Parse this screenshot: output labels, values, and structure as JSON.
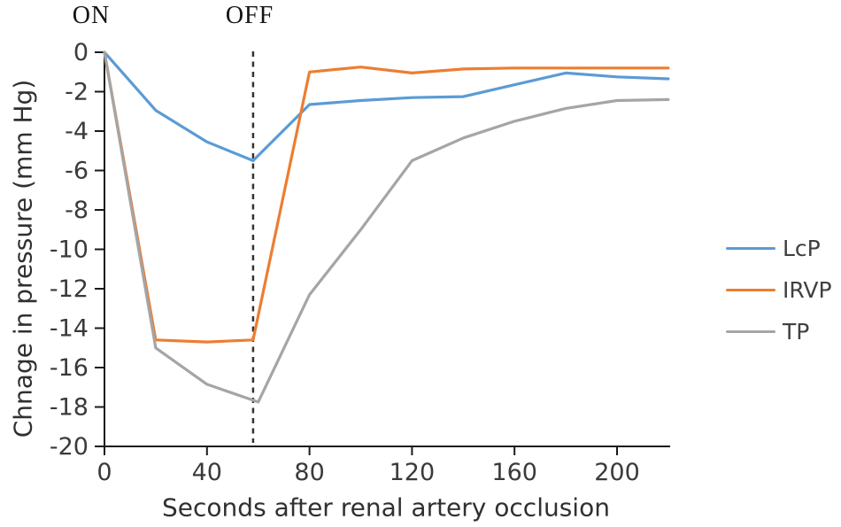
{
  "chart_data": {
    "type": "line",
    "title": "",
    "xlabel": "Seconds after renal artery occlusion",
    "ylabel": "Chnage in pressure (mm Hg)",
    "xlim": [
      0,
      220
    ],
    "ylim": [
      -20,
      0
    ],
    "x_ticks": [
      0,
      40,
      80,
      120,
      160,
      200
    ],
    "y_ticks": [
      0,
      -2,
      -4,
      -6,
      -8,
      -10,
      -12,
      -14,
      -16,
      -18,
      -20
    ],
    "grid": false,
    "legend_position": "outside-right",
    "annotations": {
      "on_text": "ON",
      "on_x": 0,
      "off_text": "OFF",
      "off_x": 58,
      "dashed_vline_x": 58,
      "dashed_vline_style": "dashed"
    },
    "series": [
      {
        "name": "LcP",
        "color": "#5B9BD5",
        "points": [
          [
            0,
            0
          ],
          [
            20,
            -2.95
          ],
          [
            40,
            -4.55
          ],
          [
            58,
            -5.5
          ],
          [
            80,
            -2.65
          ],
          [
            100,
            -2.45
          ],
          [
            120,
            -2.3
          ],
          [
            140,
            -2.25
          ],
          [
            160,
            -1.65
          ],
          [
            180,
            -1.05
          ],
          [
            200,
            -1.25
          ],
          [
            220,
            -1.35
          ]
        ]
      },
      {
        "name": "IRVP",
        "color": "#ED7D31",
        "points": [
          [
            0,
            0
          ],
          [
            20,
            -14.6
          ],
          [
            40,
            -14.7
          ],
          [
            58,
            -14.6
          ],
          [
            80,
            -1.0
          ],
          [
            100,
            -0.75
          ],
          [
            120,
            -1.05
          ],
          [
            140,
            -0.85
          ],
          [
            160,
            -0.8
          ],
          [
            180,
            -0.8
          ],
          [
            200,
            -0.8
          ],
          [
            220,
            -0.8
          ]
        ]
      },
      {
        "name": "TP",
        "color": "#A5A5A5",
        "points": [
          [
            0,
            0
          ],
          [
            20,
            -15.0
          ],
          [
            40,
            -16.85
          ],
          [
            60,
            -17.75
          ],
          [
            80,
            -12.3
          ],
          [
            100,
            -9.0
          ],
          [
            120,
            -5.5
          ],
          [
            140,
            -4.35
          ],
          [
            160,
            -3.5
          ],
          [
            180,
            -2.85
          ],
          [
            200,
            -2.45
          ],
          [
            220,
            -2.4
          ]
        ]
      }
    ]
  },
  "colors": {
    "axis": "#1a1a1a",
    "tick_label": "#3a3a3a",
    "dashed_line": "#333333",
    "background": "#ffffff"
  }
}
